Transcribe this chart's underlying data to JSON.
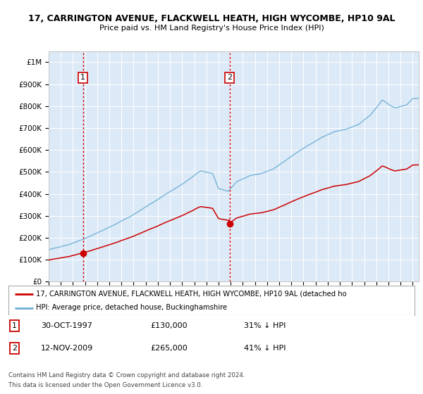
{
  "title_line1": "17, CARRINGTON AVENUE, FLACKWELL HEATH, HIGH WYCOMBE, HP10 9AL",
  "title_line2": "Price paid vs. HM Land Registry's House Price Index (HPI)",
  "background_color": "#ffffff",
  "plot_bg_color": "#dce9f7",
  "hpi_color": "#6baed6",
  "price_color": "#cc0000",
  "annotation1_date": "30-OCT-1997",
  "annotation1_price": 130000,
  "annotation1_text": "31% ↓ HPI",
  "annotation2_date": "12-NOV-2009",
  "annotation2_price": 265000,
  "annotation2_text": "41% ↓ HPI",
  "xmin": 1995.0,
  "xmax": 2025.5,
  "ymin": 0,
  "ymax": 1050000,
  "legend_label_price": "17, CARRINGTON AVENUE, FLACKWELL HEATH, HIGH WYCOMBE, HP10 9AL (detached ho",
  "legend_label_hpi": "HPI: Average price, detached house, Buckinghamshire",
  "footer_line1": "Contains HM Land Registry data © Crown copyright and database right 2024.",
  "footer_line2": "This data is licensed under the Open Government Licence v3.0."
}
